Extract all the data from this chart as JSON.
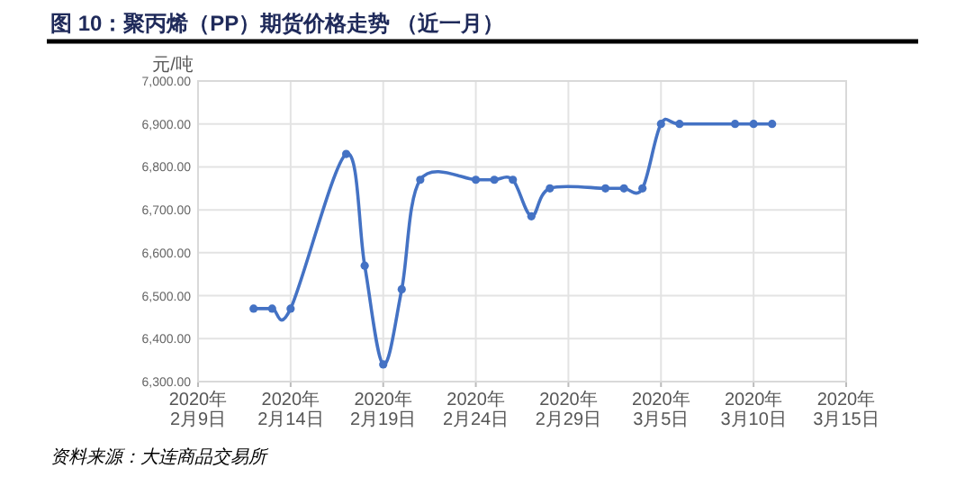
{
  "chart_data": {
    "type": "line",
    "title": "图 10：聚丙烯（PP）期货价格走势 （近一月）",
    "ylabel": "元/吨",
    "annotations": [
      "资料来源：大连商品交易所"
    ],
    "x": [
      "2020-02-12",
      "2020-02-13",
      "2020-02-14",
      "2020-02-17",
      "2020-02-18",
      "2020-02-19",
      "2020-02-20",
      "2020-02-21",
      "2020-02-24",
      "2020-02-25",
      "2020-02-26",
      "2020-02-27",
      "2020-02-28",
      "2020-03-02",
      "2020-03-03",
      "2020-03-04",
      "2020-03-05",
      "2020-03-06",
      "2020-03-09",
      "2020-03-10",
      "2020-03-11"
    ],
    "series": [
      {
        "color": "#4472c4",
        "values": [
          6470,
          6470,
          6470,
          6830,
          6570,
          6340,
          6515,
          6770,
          6770,
          6770,
          6770,
          6685,
          6750,
          6750,
          6750,
          6750,
          6900,
          6900,
          6900,
          6900,
          6900
        ]
      }
    ],
    "xlim": [
      "2020-02-09",
      "2020-03-15"
    ],
    "xticks": [
      {
        "value": "2020-02-09",
        "label": "2020年2月9日"
      },
      {
        "value": "2020-02-14",
        "label": "2020年2月14日"
      },
      {
        "value": "2020-02-19",
        "label": "2020年2月19日"
      },
      {
        "value": "2020-02-24",
        "label": "2020年2月24日"
      },
      {
        "value": "2020-02-29",
        "label": "2020年2月29日"
      },
      {
        "value": "2020-03-05",
        "label": "2020年3月5日"
      },
      {
        "value": "2020-03-10",
        "label": "2020年3月10日"
      },
      {
        "value": "2020-03-15",
        "label": "2020年3月15日"
      }
    ],
    "ylim": [
      6300,
      7000
    ],
    "yticks": [
      {
        "value": 6300,
        "label": "6,300.00"
      },
      {
        "value": 6400,
        "label": "6,400.00"
      },
      {
        "value": 6500,
        "label": "6,500.00"
      },
      {
        "value": 6600,
        "label": "6,600.00"
      },
      {
        "value": 6700,
        "label": "6,700.00"
      },
      {
        "value": 6800,
        "label": "6,800.00"
      },
      {
        "value": 6900,
        "label": "6,900.00"
      },
      {
        "value": 7000,
        "label": "7,000.00"
      }
    ],
    "grid": true,
    "marker": "circle",
    "line_style": "solid"
  }
}
